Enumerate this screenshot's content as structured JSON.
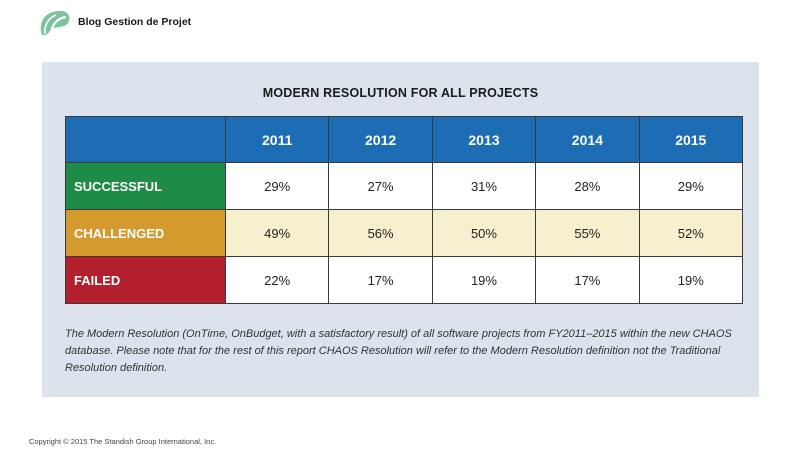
{
  "header": {
    "logo_icon": "leaf-logo-icon",
    "logo_color": "#7cc3a0",
    "blog_name": "Blog Gestion de Projet"
  },
  "panel": {
    "title": "MODERN RESOLUTION FOR ALL PROJECTS",
    "background": "#dbe4ec"
  },
  "table": {
    "header_color": "#1d6db5",
    "years": [
      "2011",
      "2012",
      "2013",
      "2014",
      "2015"
    ],
    "rows": [
      {
        "label": "SUCCESSFUL",
        "color": "#1e8c47",
        "values": [
          "29%",
          "27%",
          "31%",
          "28%",
          "29%"
        ]
      },
      {
        "label": "CHALLENGED",
        "color": "#d59a2d",
        "values": [
          "49%",
          "56%",
          "50%",
          "55%",
          "52%"
        ]
      },
      {
        "label": "FAILED",
        "color": "#b31f2d",
        "values": [
          "22%",
          "17%",
          "19%",
          "17%",
          "19%"
        ]
      }
    ]
  },
  "caption": "The Modern Resolution (OnTime, OnBudget, with a satisfactory result) of all software projects from FY2011–2015 within the new CHAOS database. Please note that for the rest of this report CHAOS Resolution will refer to the Modern Resolution definition not the Traditional Resolution definition.",
  "footer": {
    "copyright": "Copyright © 2015 The Standish Group International, Inc."
  }
}
